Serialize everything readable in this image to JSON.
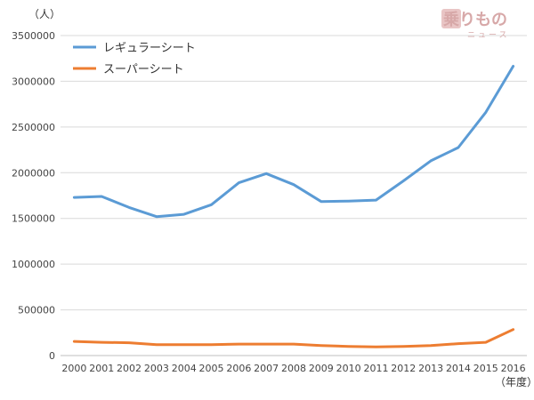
{
  "chart_data": {
    "type": "line",
    "title": "",
    "xlabel": "",
    "ylabel": "",
    "y_unit_label": "（人）",
    "x_unit_label": "（年度）",
    "categories": [
      "2000",
      "2001",
      "2002",
      "2003",
      "2004",
      "2005",
      "2006",
      "2007",
      "2008",
      "2009",
      "2010",
      "2011",
      "2012",
      "2013",
      "2014",
      "2015",
      "2016"
    ],
    "series": [
      {
        "name": "レギュラーシート",
        "color": "#5b9bd5",
        "values": [
          1730000,
          1740000,
          1620000,
          1520000,
          1545000,
          1650000,
          1890000,
          1990000,
          1870000,
          1685000,
          1690000,
          1700000,
          1910000,
          2130000,
          2275000,
          2660000,
          3165000
        ]
      },
      {
        "name": "スーパーシート",
        "color": "#ed7d31",
        "values": [
          155000,
          145000,
          140000,
          120000,
          120000,
          120000,
          125000,
          125000,
          125000,
          110000,
          100000,
          95000,
          100000,
          110000,
          130000,
          145000,
          285000
        ]
      }
    ],
    "ylim": [
      0,
      3500000
    ],
    "yticks": [
      "0",
      "500000",
      "1000000",
      "1500000",
      "2000000",
      "2500000",
      "3000000",
      "3500000"
    ],
    "grid": true,
    "legend_position": "top-left"
  },
  "logo": {
    "main": "乗りもの",
    "sub": "ニュース"
  }
}
